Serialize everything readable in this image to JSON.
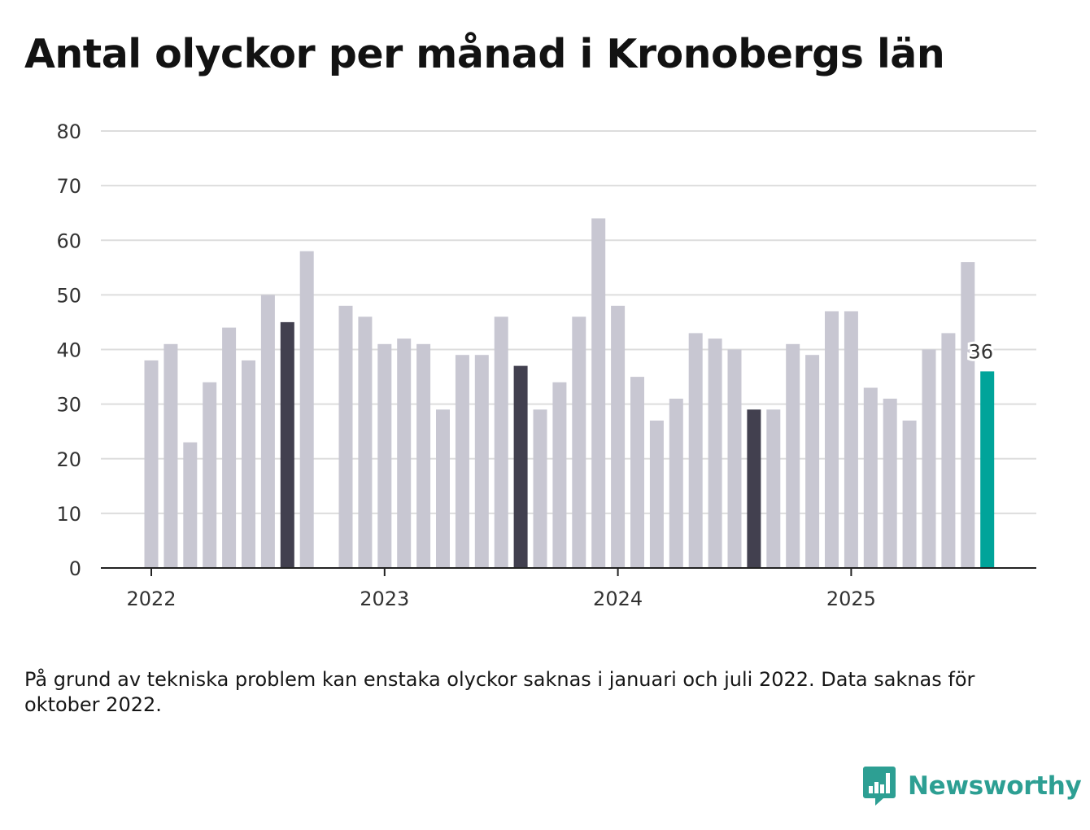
{
  "title": "Antal olyckor per månad i Kronobergs län",
  "note": "På grund av tekniska problem kan enstaka olyckor saknas i januari och juli 2022. Data saknas för oktober 2022.",
  "brand": {
    "name": "Newsworthy",
    "icon": "newsworthy-bar-chart-icon",
    "color": "#2d9f93"
  },
  "colors": {
    "default": "#c8c7d2",
    "highlight": "#42404f",
    "latest": "#00a49a",
    "grid": "#dddddd",
    "axis": "#222222"
  },
  "chart_data": {
    "type": "bar",
    "title": "Antal olyckor per månad i Kronobergs län",
    "xlabel": "",
    "ylabel": "",
    "ylim": [
      0,
      80
    ],
    "yticks": [
      0,
      10,
      20,
      30,
      40,
      50,
      60,
      70,
      80
    ],
    "xticks": [
      "2022",
      "2023",
      "2024",
      "2025"
    ],
    "grid": true,
    "highlighted_months": [
      "2022-08",
      "2023-08",
      "2024-08"
    ],
    "latest_label": "36",
    "series": [
      {
        "x": [
          "2022-01",
          "2022-02",
          "2022-03",
          "2022-04",
          "2022-05",
          "2022-06",
          "2022-07",
          "2022-08",
          "2022-09",
          "2022-10",
          "2022-11",
          "2022-12",
          "2023-01",
          "2023-02",
          "2023-03",
          "2023-04",
          "2023-05",
          "2023-06",
          "2023-07",
          "2023-08",
          "2023-09",
          "2023-10",
          "2023-11",
          "2023-12",
          "2024-01",
          "2024-02",
          "2024-03",
          "2024-04",
          "2024-05",
          "2024-06",
          "2024-07",
          "2024-08",
          "2024-09",
          "2024-10",
          "2024-11",
          "2024-12",
          "2025-01",
          "2025-02",
          "2025-03",
          "2025-04",
          "2025-05",
          "2025-06",
          "2025-07",
          "2025-08"
        ],
        "values": [
          38,
          41,
          23,
          34,
          44,
          38,
          50,
          45,
          58,
          null,
          48,
          46,
          41,
          42,
          41,
          29,
          39,
          39,
          46,
          37,
          29,
          34,
          46,
          64,
          48,
          35,
          27,
          31,
          43,
          42,
          40,
          29,
          29,
          41,
          39,
          47,
          47,
          33,
          31,
          27,
          40,
          43,
          56,
          36
        ]
      }
    ]
  }
}
